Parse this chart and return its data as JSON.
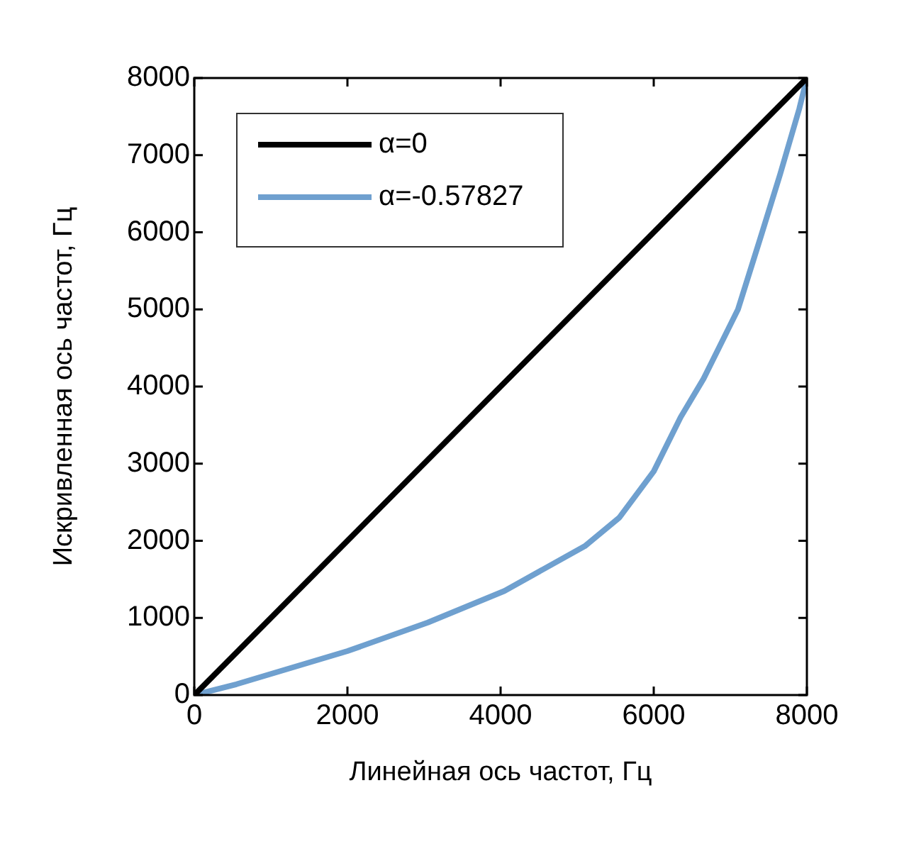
{
  "chart_data": {
    "type": "line",
    "xlabel": "Линейная ось частот, Гц",
    "ylabel": "Искривленная ось частот, Гц",
    "xlim": [
      0,
      8000
    ],
    "ylim": [
      0,
      8000
    ],
    "xticks": [
      0,
      2000,
      4000,
      6000,
      8000
    ],
    "yticks": [
      0,
      1000,
      2000,
      3000,
      4000,
      5000,
      6000,
      7000,
      8000
    ],
    "grid": false,
    "legend": "top left",
    "marker": "none",
    "line_style": "solid",
    "series": [
      {
        "name": "α=0",
        "color": "#000000",
        "x": [
          0,
          8000
        ],
        "values": [
          0,
          8000
        ]
      },
      {
        "name": "α=-0.57827",
        "color": "#6fa0cf",
        "x": [
          0,
          550,
          2000,
          3050,
          4050,
          5100,
          5550,
          6000,
          6350,
          6650,
          7100,
          7400,
          7650,
          7900,
          8000
        ],
        "values": [
          0,
          140,
          570,
          940,
          1350,
          1930,
          2300,
          2900,
          3600,
          4100,
          5000,
          5950,
          6750,
          7600,
          8000
        ]
      }
    ]
  }
}
